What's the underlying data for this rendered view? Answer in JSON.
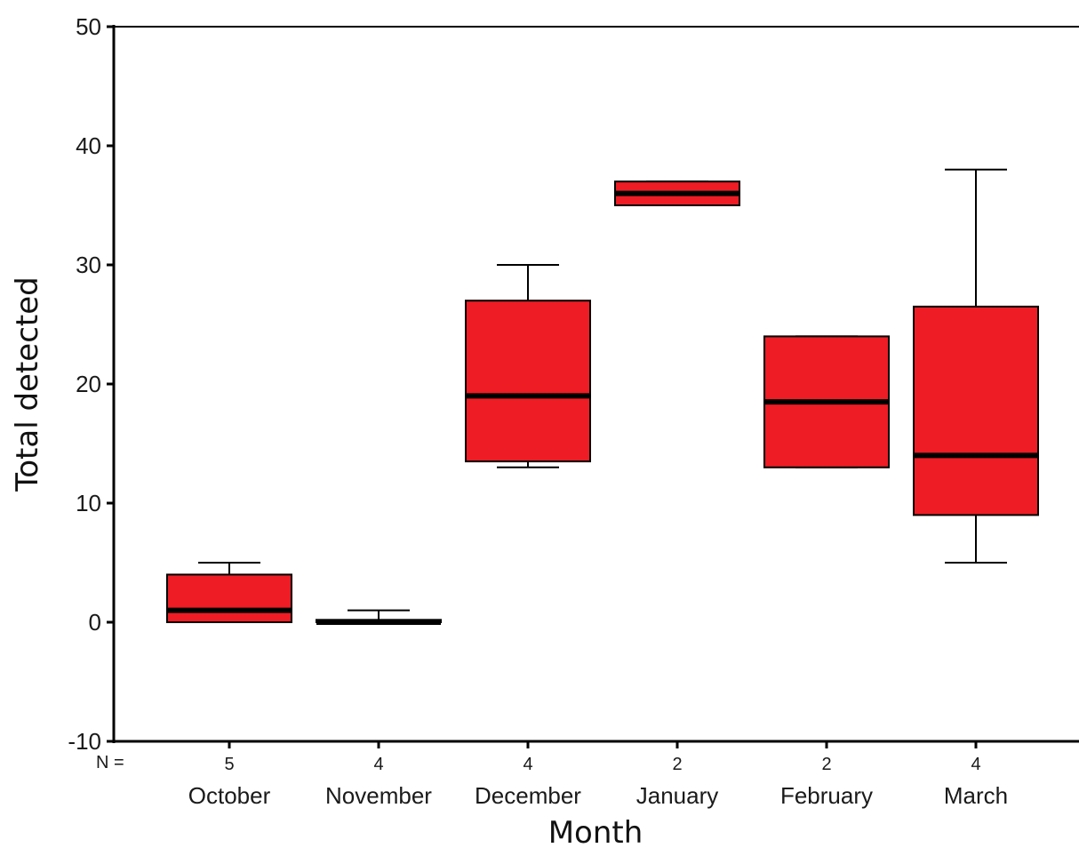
{
  "chart_data": {
    "type": "boxplot",
    "xlabel": "Month",
    "ylabel": "Total detected",
    "ylim": [
      -10,
      50
    ],
    "yticks": [
      50,
      40,
      30,
      20,
      10,
      0,
      -10
    ],
    "n_prefix": "N =",
    "grid": false,
    "box_color": "#ee1c24",
    "median_color": "#000000",
    "categories": [
      "October",
      "November",
      "December",
      "January",
      "February",
      "March"
    ],
    "n": [
      "5",
      "4",
      "4",
      "2",
      "2",
      "4"
    ],
    "boxes": [
      {
        "category": "October",
        "whisker_low": 0,
        "q1": 0,
        "median": 1,
        "q3": 4,
        "whisker_high": 5
      },
      {
        "category": "November",
        "whisker_low": 0,
        "q1": 0,
        "median": 0,
        "q3": 0.2,
        "whisker_high": 1
      },
      {
        "category": "December",
        "whisker_low": 13,
        "q1": 13.5,
        "median": 19,
        "q3": 27,
        "whisker_high": 30
      },
      {
        "category": "January",
        "whisker_low": 35,
        "q1": 35,
        "median": 36,
        "q3": 37,
        "whisker_high": 37
      },
      {
        "category": "February",
        "whisker_low": 13,
        "q1": 13,
        "median": 18.5,
        "q3": 24,
        "whisker_high": 24
      },
      {
        "category": "March",
        "whisker_low": 5,
        "q1": 9,
        "median": 14,
        "q3": 26.5,
        "whisker_high": 38
      }
    ]
  }
}
